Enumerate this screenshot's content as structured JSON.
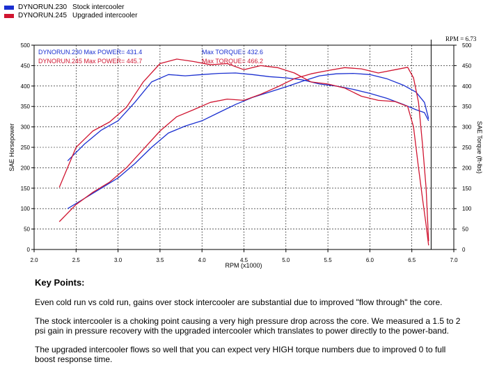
{
  "legend": [
    {
      "run": "DYNORUN.230",
      "label": "Stock intercooler",
      "color": "#1a2fd0"
    },
    {
      "run": "DYNORUN.245",
      "label": "Upgraded intercooler",
      "color": "#d01530"
    }
  ],
  "rpm_marker_text": "RPM = 6.73",
  "key_points": {
    "title": "Key Points:",
    "paragraphs": [
      "Even cold run vs cold run, gains over stock intercooler are substantial due to improved \"flow through\" the core.",
      "The stock intercooler is a choking point causing a very high pressure drop across the core. We measured a 1.5 to 2 psi gain in pressure recovery with the upgraded intercooler which translates to power directly to the power-band.",
      "The upgraded intercooler flows so well that you can expect very HIGH torque numbers due to improved 0 to full boost response time."
    ]
  },
  "chart_data": {
    "type": "line",
    "xlabel": "RPM (x1000)",
    "ylabel": "SAE Horsepower",
    "ylabel_right": "SAE Torque (ft-lbs)",
    "xlim": [
      2.0,
      7.0
    ],
    "ylim": [
      0,
      500
    ],
    "xticks": [
      "2.0",
      "2.5",
      "3.0",
      "3.5",
      "4.0",
      "4.5",
      "5.0",
      "5.5",
      "6.0",
      "6.5",
      "7.0"
    ],
    "yticks": [
      "0",
      "50",
      "100",
      "150",
      "200",
      "250",
      "300",
      "350",
      "400",
      "450",
      "500"
    ],
    "grid": true,
    "cursor_rpm": 6.73,
    "annotations": [
      {
        "text": "DYNORUN.230  Max POWER= 431.4",
        "color": "#1a2fd0"
      },
      {
        "text": "DYNORUN.245  Max POWER= 445.7",
        "color": "#d01530"
      },
      {
        "text": "Max TORQUE= 432.6",
        "color": "#1a2fd0"
      },
      {
        "text": "Max TORQUE= 466.2",
        "color": "#d01530"
      }
    ],
    "series": [
      {
        "name": "DYNORUN.230",
        "measure": "power",
        "color": "#1a2fd0",
        "x": [
          2.4,
          2.6,
          2.8,
          3.0,
          3.2,
          3.4,
          3.6,
          3.8,
          4.0,
          4.2,
          4.4,
          4.6,
          4.8,
          5.0,
          5.2,
          5.4,
          5.6,
          5.8,
          6.0,
          6.2,
          6.4,
          6.55,
          6.65,
          6.7
        ],
        "y": [
          100,
          125,
          150,
          175,
          210,
          250,
          285,
          302,
          315,
          335,
          355,
          372,
          385,
          398,
          412,
          425,
          430,
          431,
          428,
          418,
          402,
          385,
          360,
          320
        ]
      },
      {
        "name": "DYNORUN.230",
        "measure": "torque",
        "color": "#1a2fd0",
        "x": [
          2.4,
          2.6,
          2.8,
          3.0,
          3.2,
          3.4,
          3.6,
          3.8,
          4.0,
          4.2,
          4.4,
          4.6,
          4.8,
          5.0,
          5.2,
          5.4,
          5.6,
          5.8,
          6.0,
          6.2,
          6.4,
          6.55,
          6.65,
          6.7
        ],
        "y": [
          217,
          258,
          292,
          315,
          360,
          410,
          428,
          425,
          428,
          431,
          432,
          428,
          423,
          420,
          415,
          405,
          400,
          392,
          382,
          370,
          355,
          342,
          335,
          315
        ]
      },
      {
        "name": "DYNORUN.245",
        "measure": "power",
        "color": "#d01530",
        "x": [
          2.3,
          2.5,
          2.7,
          2.9,
          3.1,
          3.3,
          3.5,
          3.7,
          3.9,
          4.1,
          4.3,
          4.5,
          4.7,
          4.9,
          5.1,
          5.3,
          5.5,
          5.7,
          5.9,
          6.1,
          6.3,
          6.45,
          6.52,
          6.58,
          6.63,
          6.67,
          6.7
        ],
        "y": [
          68,
          110,
          140,
          165,
          200,
          245,
          290,
          325,
          342,
          360,
          368,
          365,
          380,
          398,
          418,
          430,
          438,
          445,
          442,
          432,
          440,
          446,
          420,
          360,
          250,
          150,
          20
        ]
      },
      {
        "name": "DYNORUN.245",
        "measure": "torque",
        "color": "#d01530",
        "x": [
          2.3,
          2.5,
          2.7,
          2.9,
          3.1,
          3.3,
          3.5,
          3.7,
          3.9,
          4.1,
          4.3,
          4.5,
          4.7,
          4.9,
          5.1,
          5.3,
          5.5,
          5.7,
          5.9,
          6.1,
          6.3,
          6.45,
          6.52,
          6.58,
          6.63,
          6.67,
          6.7
        ],
        "y": [
          152,
          250,
          290,
          312,
          348,
          410,
          455,
          466,
          460,
          452,
          455,
          440,
          450,
          445,
          432,
          410,
          405,
          395,
          375,
          365,
          362,
          350,
          300,
          200,
          120,
          60,
          10
        ]
      }
    ]
  }
}
